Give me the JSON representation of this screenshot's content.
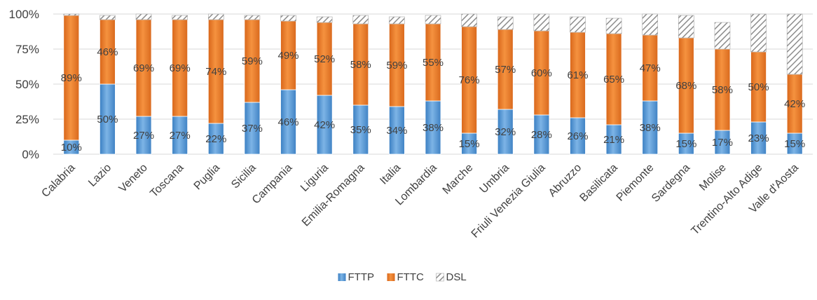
{
  "chart_data": {
    "type": "bar",
    "stacked": true,
    "normalized": true,
    "categories": [
      "Calabria",
      "Lazio",
      "Veneto",
      "Toscana",
      "Puglia",
      "Sicilia",
      "Campania",
      "Liguria",
      "Emilia-Romagna",
      "Italia",
      "Lombardia",
      "Marche",
      "Umbria",
      "Friuli Venezia Giulia",
      "Abruzzo",
      "Basilicata",
      "Piemonte",
      "Sardegna",
      "Molise",
      "Trentino-Alto Adige",
      "Valle d'Aosta"
    ],
    "series": [
      {
        "name": "FTTP",
        "color": "#5b9bd5",
        "values": [
          10,
          50,
          27,
          27,
          22,
          37,
          46,
          42,
          35,
          34,
          38,
          15,
          32,
          28,
          26,
          21,
          38,
          15,
          17,
          23,
          15
        ],
        "labels": [
          "10%",
          "50%",
          "27%",
          "27%",
          "22%",
          "37%",
          "46%",
          "42%",
          "35%",
          "34%",
          "38%",
          "15%",
          "32%",
          "28%",
          "26%",
          "21%",
          "38%",
          "15%",
          "17%",
          "23%",
          "15%"
        ]
      },
      {
        "name": "FTTC",
        "color": "#ed7d31",
        "values": [
          89,
          46,
          69,
          69,
          74,
          59,
          49,
          52,
          58,
          59,
          55,
          76,
          57,
          60,
          61,
          65,
          47,
          68,
          58,
          50,
          42
        ],
        "labels": [
          "89%",
          "46%",
          "69%",
          "69%",
          "74%",
          "59%",
          "49%",
          "52%",
          "58%",
          "59%",
          "55%",
          "76%",
          "57%",
          "60%",
          "61%",
          "65%",
          "47%",
          "68%",
          "58%",
          "50%",
          "42%"
        ]
      },
      {
        "name": "DSL",
        "color": "#a5a5a5",
        "pattern": "diagonal-hatch",
        "values": [
          1,
          3,
          4,
          3,
          4,
          3,
          4,
          4,
          6,
          5,
          6,
          9,
          9,
          12,
          11,
          11,
          15,
          16,
          19,
          27,
          43
        ]
      }
    ],
    "ylim": [
      0,
      100
    ],
    "yticks": [
      "0%",
      "25%",
      "50%",
      "75%",
      "100%"
    ],
    "ytick_values": [
      0,
      25,
      50,
      75,
      100
    ],
    "grid": true,
    "legend": "bottom-center"
  }
}
